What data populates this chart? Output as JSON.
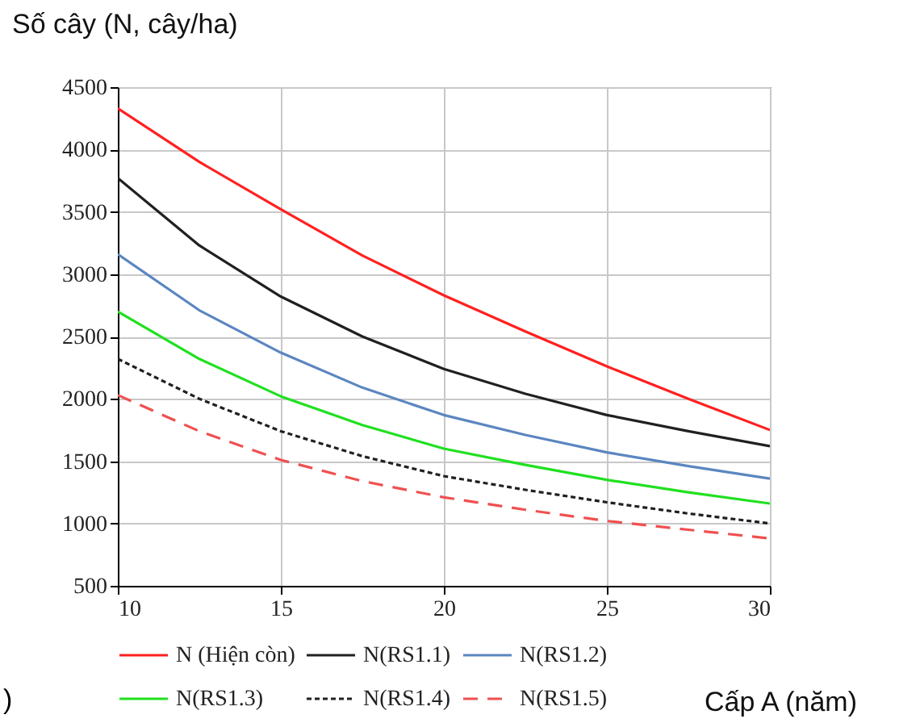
{
  "chart_data": {
    "type": "line",
    "ylabel": "Số cây (N, cây/ha)",
    "xlabel": "Cấp A (năm)",
    "annotations": [
      ")"
    ],
    "x": [
      10,
      12.5,
      15,
      17.5,
      20,
      22.5,
      25,
      27.5,
      30
    ],
    "xlim": [
      10,
      30
    ],
    "xticks": [
      10,
      15,
      20,
      25,
      30
    ],
    "ylim": [
      500,
      4500
    ],
    "yticks": [
      500,
      1000,
      1500,
      2000,
      2500,
      3000,
      3500,
      4000,
      4500
    ],
    "grid": true,
    "legend": "bottom",
    "marker": "none",
    "series": [
      {
        "name": "N (Hiện còn)",
        "color": "#ff2020",
        "line_style": "solid",
        "values": [
          4330,
          3900,
          3520,
          3150,
          2830,
          2540,
          2260,
          2000,
          1750
        ]
      },
      {
        "name": "N(RS1.1)",
        "color": "#202020",
        "line_style": "solid",
        "values": [
          3770,
          3230,
          2820,
          2500,
          2240,
          2040,
          1870,
          1740,
          1620
        ]
      },
      {
        "name": "N(RS1.2)",
        "color": "#5b86c0",
        "line_style": "solid",
        "values": [
          3160,
          2710,
          2370,
          2090,
          1870,
          1710,
          1570,
          1460,
          1360
        ]
      },
      {
        "name": "N(RS1.3)",
        "color": "#20e020",
        "line_style": "solid",
        "values": [
          2700,
          2320,
          2020,
          1790,
          1600,
          1470,
          1350,
          1250,
          1160
        ]
      },
      {
        "name": "N(RS1.4)",
        "color": "#202020",
        "line_style": "dotted",
        "values": [
          2320,
          2000,
          1740,
          1540,
          1380,
          1270,
          1170,
          1080,
          1000
        ]
      },
      {
        "name": "N(RS1.5)",
        "color": "#f05050",
        "line_style": "dashed",
        "values": [
          2030,
          1740,
          1510,
          1340,
          1210,
          1110,
          1020,
          950,
          880
        ]
      }
    ]
  }
}
